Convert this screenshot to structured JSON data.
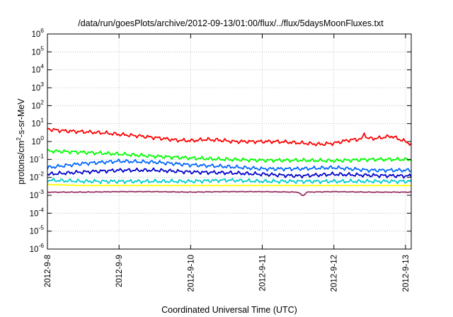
{
  "chart_data": {
    "type": "line",
    "title": "/data/run/goesPlots/archive/2012-09-13/01:00/flux/../flux/5daysMoonFluxes.txt",
    "xlabel": "Coordinated Universal Time (UTC)",
    "ylabel": {
      "prefix": "protons/cm",
      "superscript": "2",
      "suffix": "-s-sr-MeV"
    },
    "x_ticks": [
      "2012-9-8",
      "2012-9-9",
      "2012-9-10",
      "2012-9-11",
      "2012-9-12",
      "2012-9-13"
    ],
    "xlim_days": [
      0,
      5.08
    ],
    "y_scale": "log",
    "ylim": [
      1e-06,
      1000000.0
    ],
    "y_ticks": [
      {
        "base": "10",
        "exp": "-6"
      },
      {
        "base": "10",
        "exp": "-5"
      },
      {
        "base": "10",
        "exp": "-4"
      },
      {
        "base": "10",
        "exp": "-3"
      },
      {
        "base": "10",
        "exp": "-2"
      },
      {
        "base": "10",
        "exp": "-1"
      },
      {
        "base": "10",
        "exp": "0"
      },
      {
        "base": "10",
        "exp": "1"
      },
      {
        "base": "10",
        "exp": "2"
      },
      {
        "base": "10",
        "exp": "3"
      },
      {
        "base": "10",
        "exp": "4"
      },
      {
        "base": "10",
        "exp": "5"
      },
      {
        "base": "10",
        "exp": "6"
      }
    ],
    "grid": true,
    "series": [
      {
        "color": "#ffff00",
        "days": [
          0,
          0.5,
          1,
          1.5,
          2,
          2.5,
          3,
          3.5,
          4,
          4.5,
          5,
          5.08
        ],
        "values": [
          0.004,
          0.0035,
          0.0035,
          0.0035,
          0.0035,
          0.0035,
          0.0035,
          0.0035,
          0.0035,
          0.0035,
          0.0035,
          0.0035
        ]
      },
      {
        "color": "#993366",
        "days": [
          0,
          0.5,
          1,
          1.5,
          2,
          2.5,
          3,
          3.5,
          3.57,
          3.62,
          4,
          4.5,
          5,
          5.08
        ],
        "values": [
          0.0015,
          0.0015,
          0.0016,
          0.0016,
          0.0015,
          0.0016,
          0.0016,
          0.0015,
          0.0009,
          0.0015,
          0.0016,
          0.0015,
          0.0015,
          0.0015
        ]
      },
      {
        "color": "#00cccc",
        "days": [
          0,
          0.5,
          1,
          1.5,
          2,
          2.5,
          3,
          3.5,
          4,
          4.5,
          5,
          5.08
        ],
        "values": [
          0.007,
          0.006,
          0.006,
          0.006,
          0.006,
          0.007,
          0.006,
          0.006,
          0.006,
          0.006,
          0.006,
          0.006
        ]
      },
      {
        "color": "#0000cc",
        "days": [
          0,
          0.5,
          1,
          1.5,
          2,
          2.5,
          3,
          3.5,
          4,
          4.5,
          5,
          5.08
        ],
        "values": [
          0.015,
          0.02,
          0.025,
          0.025,
          0.02,
          0.018,
          0.015,
          0.012,
          0.015,
          0.013,
          0.012,
          0.012
        ]
      },
      {
        "color": "#0066ff",
        "days": [
          0,
          0.5,
          1,
          1.5,
          2,
          2.5,
          3,
          3.5,
          4,
          4.5,
          5,
          5.08
        ],
        "values": [
          0.035,
          0.06,
          0.08,
          0.07,
          0.05,
          0.04,
          0.03,
          0.03,
          0.035,
          0.025,
          0.025,
          0.025
        ]
      },
      {
        "color": "#00ff00",
        "days": [
          0,
          0.5,
          1,
          1.5,
          2,
          2.5,
          3,
          3.5,
          4,
          4.5,
          5,
          5.08
        ],
        "values": [
          0.3,
          0.25,
          0.2,
          0.15,
          0.12,
          0.1,
          0.09,
          0.09,
          0.085,
          0.1,
          0.1,
          0.1
        ]
      },
      {
        "color": "#ff0000",
        "days": [
          0,
          0.2,
          0.5,
          0.8,
          1,
          1.3,
          1.6,
          1.8,
          2,
          2.2,
          2.4,
          2.6,
          2.8,
          3,
          3.2,
          3.4,
          3.6,
          3.8,
          4,
          4.2,
          4.4,
          4.42,
          4.46,
          4.6,
          4.8,
          5,
          5.08
        ],
        "values": [
          5,
          4,
          3.5,
          3,
          2.5,
          2,
          1.5,
          1.2,
          1.1,
          1.3,
          1.2,
          1.0,
          1.0,
          1.0,
          1.0,
          0.9,
          0.8,
          0.7,
          0.8,
          1.2,
          1.4,
          3.5,
          1.5,
          1.5,
          2.0,
          1.0,
          0.7
        ]
      }
    ]
  }
}
